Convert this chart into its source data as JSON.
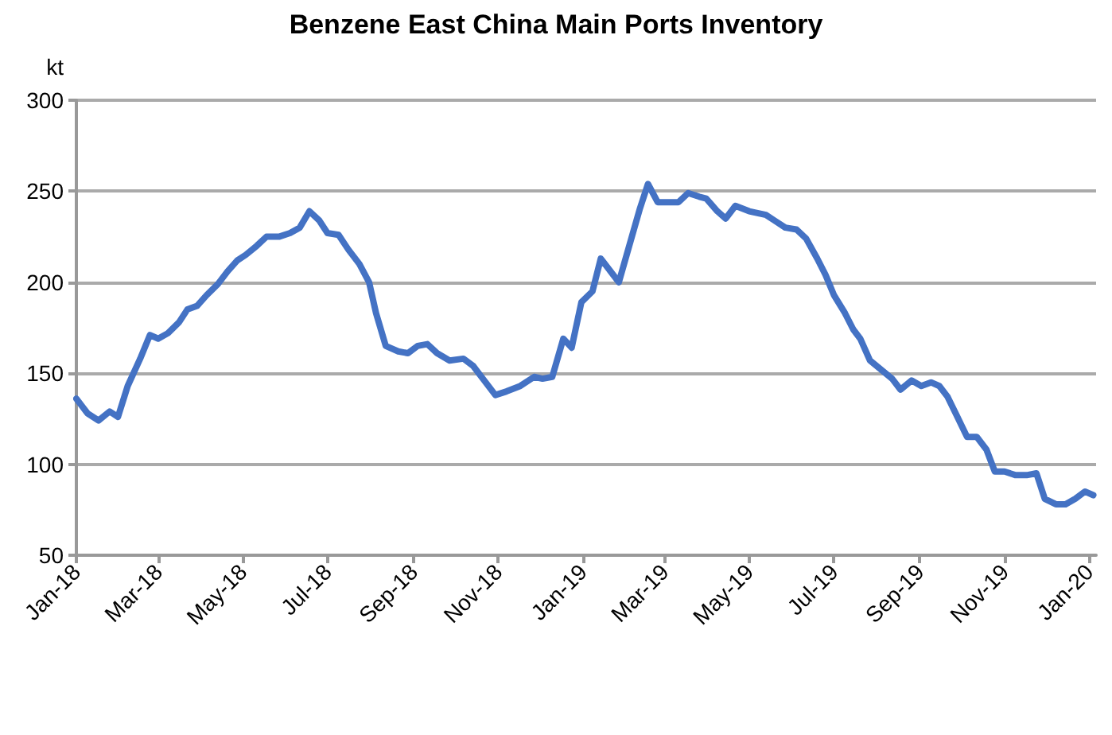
{
  "chart_data": {
    "type": "line",
    "title": "Benzene East China Main Ports Inventory",
    "ylabel": "kt",
    "x": [
      "2018-01-01",
      "2018-01-09",
      "2018-01-17",
      "2018-01-25",
      "2018-01-31",
      "2018-02-07",
      "2018-02-16",
      "2018-02-23",
      "2018-03-01",
      "2018-03-08",
      "2018-03-16",
      "2018-03-22",
      "2018-03-29",
      "2018-04-05",
      "2018-04-13",
      "2018-04-20",
      "2018-04-27",
      "2018-05-03",
      "2018-05-11",
      "2018-05-18",
      "2018-05-27",
      "2018-06-04",
      "2018-06-11",
      "2018-06-18",
      "2018-06-25",
      "2018-07-01",
      "2018-07-09",
      "2018-07-16",
      "2018-07-24",
      "2018-07-31",
      "2018-08-05",
      "2018-08-12",
      "2018-08-21",
      "2018-08-28",
      "2018-09-04",
      "2018-09-11",
      "2018-09-18",
      "2018-09-27",
      "2018-10-07",
      "2018-10-14",
      "2018-10-22",
      "2018-10-30",
      "2018-11-07",
      "2018-11-17",
      "2018-11-27",
      "2018-12-03",
      "2018-12-10",
      "2018-12-18",
      "2018-12-24",
      "2018-12-31",
      "2019-01-08",
      "2019-01-14",
      "2019-01-19",
      "2019-01-27",
      "2019-02-05",
      "2019-02-11",
      "2019-02-17",
      "2019-02-24",
      "2019-03-03",
      "2019-03-11",
      "2019-03-18",
      "2019-03-26",
      "2019-03-31",
      "2019-04-08",
      "2019-04-14",
      "2019-04-21",
      "2019-05-01",
      "2019-05-13",
      "2019-05-19",
      "2019-05-27",
      "2019-06-04",
      "2019-06-11",
      "2019-06-19",
      "2019-06-25",
      "2019-07-01",
      "2019-07-09",
      "2019-07-15",
      "2019-07-20",
      "2019-07-27",
      "2019-08-04",
      "2019-08-12",
      "2019-08-18",
      "2019-08-26",
      "2019-09-02",
      "2019-09-09",
      "2019-09-15",
      "2019-09-21",
      "2019-09-28",
      "2019-10-05",
      "2019-10-12",
      "2019-10-19",
      "2019-10-25",
      "2019-11-01",
      "2019-11-09",
      "2019-11-17",
      "2019-11-24",
      "2019-11-30",
      "2019-12-08",
      "2019-12-15",
      "2019-12-22",
      "2019-12-29",
      "2020-01-04"
    ],
    "series": [
      {
        "color": "#4472c4",
        "values": [
          136,
          128,
          124,
          129,
          126,
          143,
          158,
          171,
          169,
          172,
          178,
          185,
          187,
          193,
          199,
          206,
          212,
          215,
          220,
          225,
          225,
          227,
          230,
          239,
          234,
          227,
          226,
          218,
          210,
          200,
          183,
          165,
          162,
          161,
          165,
          166,
          161,
          157,
          158,
          154,
          146,
          138,
          140,
          143,
          148,
          147,
          148,
          169,
          164,
          189,
          195,
          213,
          208,
          200,
          224,
          240,
          254,
          244,
          244,
          244,
          249,
          247,
          246,
          239,
          235,
          242,
          239,
          237,
          234,
          230,
          229,
          224,
          213,
          204,
          193,
          183,
          174,
          169,
          157,
          152,
          147,
          141,
          146,
          143,
          145,
          143,
          137,
          126,
          115,
          115,
          108,
          96,
          96,
          94,
          94,
          95,
          81,
          78,
          78,
          81,
          85,
          83
        ]
      }
    ],
    "xlim": [
      "2018-01-01",
      "2020-01-06"
    ],
    "xticks": [
      {
        "value": "2018-01-01",
        "label": "Jan-18"
      },
      {
        "value": "2018-03-01",
        "label": "Mar-18"
      },
      {
        "value": "2018-05-01",
        "label": "May-18"
      },
      {
        "value": "2018-07-01",
        "label": "Jul-18"
      },
      {
        "value": "2018-09-01",
        "label": "Sep-18"
      },
      {
        "value": "2018-11-01",
        "label": "Nov-18"
      },
      {
        "value": "2019-01-01",
        "label": "Jan-19"
      },
      {
        "value": "2019-03-01",
        "label": "Mar-19"
      },
      {
        "value": "2019-05-01",
        "label": "May-19"
      },
      {
        "value": "2019-07-01",
        "label": "Jul-19"
      },
      {
        "value": "2019-09-01",
        "label": "Sep-19"
      },
      {
        "value": "2019-11-01",
        "label": "Nov-19"
      },
      {
        "value": "2020-01-01",
        "label": "Jan-20"
      }
    ],
    "ylim": [
      50,
      300
    ],
    "yticks": [
      50,
      100,
      150,
      200,
      250,
      300
    ],
    "grid": "y",
    "marker": "none",
    "line_style": "solid"
  }
}
